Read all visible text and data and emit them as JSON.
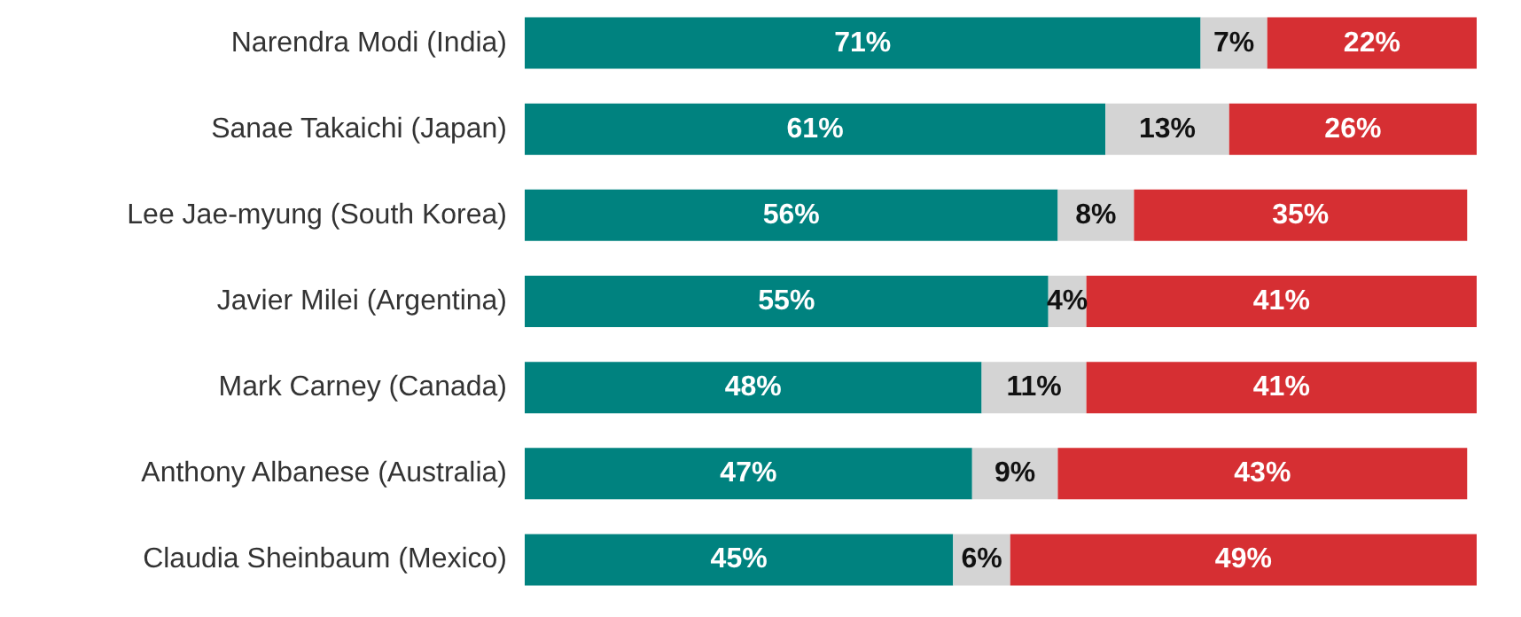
{
  "chart_data": {
    "type": "bar",
    "orientation": "horizontal",
    "stacked": true,
    "categories": [
      "Narendra Modi (India)",
      "Sanae Takaichi (Japan)",
      "Lee Jae-myung (South Korea)",
      "Javier Milei (Argentina)",
      "Mark Carney (Canada)",
      "Anthony Albanese (Australia)",
      "Claudia Sheinbaum (Mexico)"
    ],
    "series": [
      {
        "color": "#00827f",
        "values": [
          71,
          61,
          56,
          55,
          48,
          47,
          45
        ],
        "value_labels": [
          "71%",
          "61%",
          "56%",
          "55%",
          "48%",
          "47%",
          "45%"
        ]
      },
      {
        "color": "#d4d4d4",
        "values": [
          7,
          13,
          8,
          4,
          11,
          9,
          6
        ],
        "value_labels": [
          "7%",
          "13%",
          "8%",
          "4%",
          "11%",
          "9%",
          "6%"
        ]
      },
      {
        "color": "#d62f33",
        "values": [
          22,
          26,
          35,
          41,
          41,
          43,
          49
        ],
        "value_labels": [
          "22%",
          "26%",
          "35%",
          "41%",
          "41%",
          "43%",
          "49%"
        ]
      }
    ]
  }
}
